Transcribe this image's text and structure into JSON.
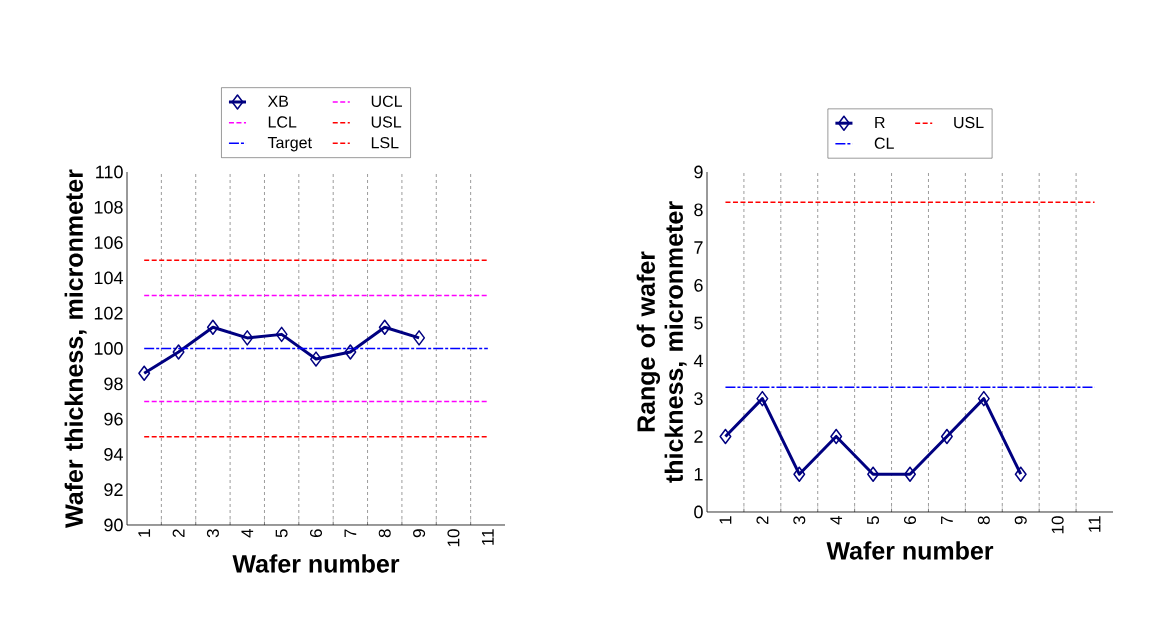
{
  "chart_data": [
    {
      "type": "line",
      "xlabel": "Wafer number",
      "ylabel": "Wafer thickness, micronmeter",
      "categories": [
        "1",
        "2",
        "3",
        "4",
        "5",
        "6",
        "7",
        "8",
        "9",
        "10",
        "11"
      ],
      "ylim": [
        90,
        110
      ],
      "yticks": [
        90,
        92,
        94,
        96,
        98,
        100,
        102,
        104,
        106,
        108,
        110
      ],
      "grid": "x",
      "legend": "top",
      "series": [
        {
          "name": "XB",
          "color": "#000080",
          "marker": "diamond",
          "line_style": "solid",
          "values": [
            98.6,
            99.8,
            101.2,
            100.6,
            100.8,
            99.4,
            99.8,
            101.2,
            100.6,
            null,
            null
          ]
        },
        {
          "name": "UCL",
          "color": "#ff00ff",
          "marker": "none",
          "line_style": "dotted",
          "values": [
            103,
            103,
            103,
            103,
            103,
            103,
            103,
            103,
            103,
            103,
            103
          ]
        },
        {
          "name": "LCL",
          "color": "#ff00ff",
          "marker": "none",
          "line_style": "dotted",
          "values": [
            97,
            97,
            97,
            97,
            97,
            97,
            97,
            97,
            97,
            97,
            97
          ]
        },
        {
          "name": "USL",
          "color": "#ff0000",
          "marker": "none",
          "line_style": "dotted",
          "values": [
            105,
            105,
            105,
            105,
            105,
            105,
            105,
            105,
            105,
            105,
            105
          ]
        },
        {
          "name": "Target",
          "color": "#0000ff",
          "marker": "none",
          "line_style": "dashed",
          "values": [
            100,
            100,
            100,
            100,
            100,
            100,
            100,
            100,
            100,
            100,
            100
          ]
        },
        {
          "name": "LSL",
          "color": "#ff0000",
          "marker": "none",
          "line_style": "dotted",
          "values": [
            95,
            95,
            95,
            95,
            95,
            95,
            95,
            95,
            95,
            95,
            95
          ]
        }
      ]
    },
    {
      "type": "line",
      "xlabel": "Wafer number",
      "ylabel": "Range of wafer thickness, micronmeter",
      "categories": [
        "1",
        "2",
        "3",
        "4",
        "5",
        "6",
        "7",
        "8",
        "9",
        "10",
        "11"
      ],
      "ylim": [
        0,
        9
      ],
      "yticks": [
        0,
        1,
        2,
        3,
        4,
        5,
        6,
        7,
        8,
        9
      ],
      "grid": "x",
      "legend": "top",
      "series": [
        {
          "name": "R",
          "color": "#000080",
          "marker": "diamond",
          "line_style": "solid",
          "values": [
            2,
            3,
            1,
            2,
            1,
            1,
            2,
            3,
            1,
            null,
            null
          ]
        },
        {
          "name": "USL",
          "color": "#ff0000",
          "marker": "none",
          "line_style": "dotted",
          "values": [
            8.2,
            8.2,
            8.2,
            8.2,
            8.2,
            8.2,
            8.2,
            8.2,
            8.2,
            8.2,
            8.2
          ]
        },
        {
          "name": "CL",
          "color": "#0000ff",
          "marker": "none",
          "line_style": "dashed",
          "values": [
            3.3,
            3.3,
            3.3,
            3.3,
            3.3,
            3.3,
            3.3,
            3.3,
            3.3,
            3.3,
            3.3
          ]
        }
      ]
    }
  ]
}
